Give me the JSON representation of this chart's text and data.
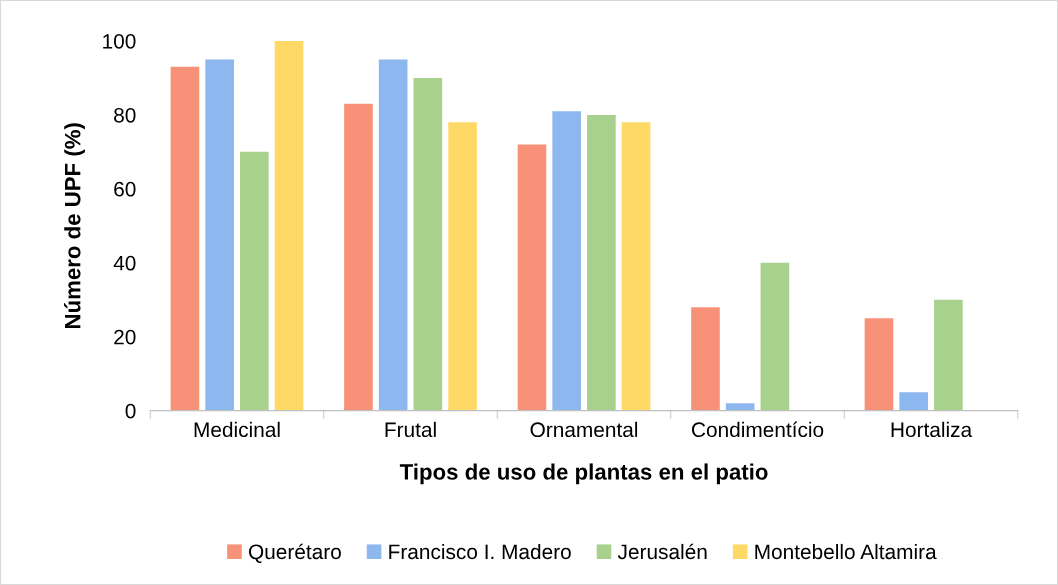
{
  "chart_data": {
    "type": "bar",
    "xlabel": "Tipos de uso de plantas en el patio",
    "ylabel": "Número de UPF (%)",
    "categories": [
      "Medicinal",
      "Frutal",
      "Ornamental",
      "Condimentício",
      "Hortaliza"
    ],
    "series": [
      {
        "name": "Querétaro",
        "color": "#f79177",
        "values": [
          93,
          83,
          72,
          28,
          25
        ]
      },
      {
        "name": "Francisco I. Madero",
        "color": "#8db7ef",
        "values": [
          95,
          95,
          81,
          2,
          5
        ]
      },
      {
        "name": "Jerusalén",
        "color": "#a9d18e",
        "values": [
          70,
          90,
          80,
          40,
          30
        ]
      },
      {
        "name": "Montebello Altamira",
        "color": "#ffd966",
        "values": [
          100,
          78,
          78,
          0,
          0
        ]
      }
    ],
    "ylim": [
      0,
      100
    ],
    "yticks": [
      0,
      20,
      40,
      60,
      80,
      100
    ],
    "grid": false,
    "legend": "bottom"
  }
}
